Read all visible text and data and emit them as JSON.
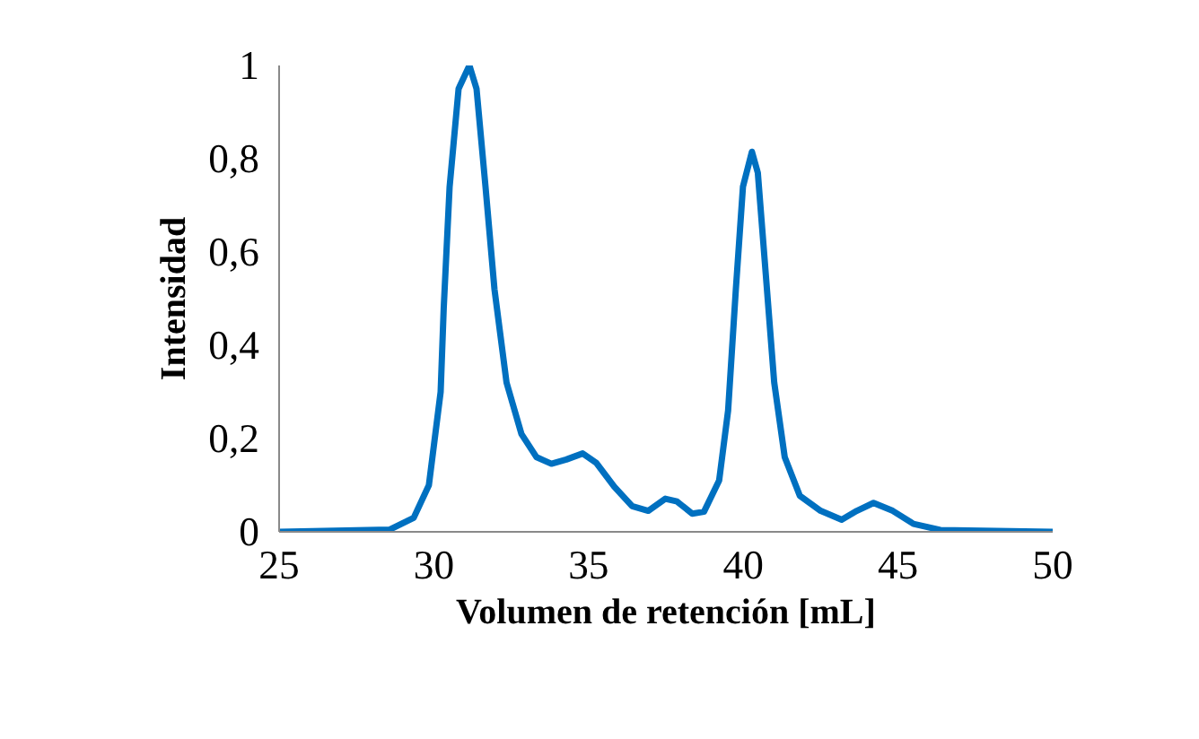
{
  "chart_data": {
    "type": "line",
    "xlabel": "Volumen de retención [mL]",
    "ylabel": "Intensidad",
    "xlim": [
      25,
      50
    ],
    "xticks": [
      25,
      30,
      35,
      40,
      45,
      50
    ],
    "ylim": [
      0,
      1
    ],
    "yticks": [
      0,
      {
        "value": 0.2,
        "label": "0,2"
      },
      {
        "value": 0.4,
        "label": "0,4"
      },
      {
        "value": 0.6,
        "label": "0,6"
      },
      {
        "value": 0.8,
        "label": "0,8"
      },
      1
    ],
    "grid": false,
    "line_style": "solid",
    "series": [
      {
        "color": "#0070c0",
        "x": [
          25,
          28.58,
          29.35,
          29.84,
          30.22,
          30.32,
          30.51,
          30.8,
          31.15,
          31.38,
          31.67,
          31.96,
          32.35,
          32.83,
          33.32,
          33.8,
          34.28,
          34.81,
          35.25,
          35.83,
          36.41,
          36.93,
          37.48,
          37.86,
          38.35,
          38.73,
          39.22,
          39.51,
          39.76,
          39.99,
          40.28,
          40.47,
          40.73,
          41.0,
          41.34,
          41.83,
          42.5,
          43.18,
          43.67,
          44.21,
          44.83,
          45.5,
          46.37,
          50
        ],
        "values": [
          0,
          0.005,
          0.03,
          0.1,
          0.3,
          0.48,
          0.74,
          0.95,
          1.0,
          0.95,
          0.74,
          0.52,
          0.32,
          0.21,
          0.16,
          0.146,
          0.155,
          0.168,
          0.148,
          0.097,
          0.055,
          0.045,
          0.071,
          0.065,
          0.039,
          0.043,
          0.11,
          0.26,
          0.52,
          0.74,
          0.815,
          0.77,
          0.55,
          0.32,
          0.16,
          0.077,
          0.045,
          0.026,
          0.045,
          0.062,
          0.045,
          0.017,
          0.004,
          0
        ]
      }
    ]
  }
}
